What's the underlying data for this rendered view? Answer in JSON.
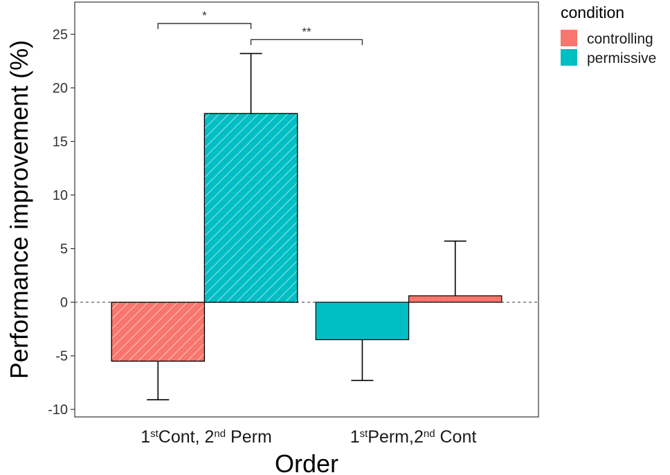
{
  "chart_data": {
    "type": "bar",
    "xlabel": "Order",
    "ylabel": "Performance improvement (%)",
    "ylim": [
      -10.7,
      28
    ],
    "yticks": [
      -10,
      -5,
      0,
      5,
      10,
      15,
      20,
      25
    ],
    "categories": [
      {
        "ord1": "1",
        "sup1": "st",
        "name1": "Cont, 2",
        "sup2": "nd",
        "name2": " Perm"
      },
      {
        "ord1": "1",
        "sup1": "st",
        "name1": "Perm,2",
        "sup2": "nd",
        "name2": " Cont"
      }
    ],
    "bars": [
      {
        "category": 0,
        "condition": "controlling",
        "value": -5.5,
        "error": 3.6,
        "hatched": true
      },
      {
        "category": 0,
        "condition": "permissive",
        "value": 17.6,
        "error": 5.6,
        "hatched": true
      },
      {
        "category": 1,
        "condition": "permissive",
        "value": -3.5,
        "error": 3.8,
        "hatched": false
      },
      {
        "category": 1,
        "condition": "controlling",
        "value": 0.6,
        "error": 5.1,
        "hatched": false
      }
    ],
    "legend": {
      "title": "condition",
      "position": "right",
      "entries": [
        {
          "label": "controlling",
          "color": "#F8766D"
        },
        {
          "label": "permissive",
          "color": "#00BFC4"
        }
      ]
    },
    "significance": [
      {
        "from_bar": 0,
        "to_bar": 1,
        "label": "*",
        "y": 26
      },
      {
        "from_bar": 1,
        "to_bar": 2,
        "label": "**",
        "y": 24.5
      }
    ],
    "zero_line": "dashed",
    "grid": false
  }
}
